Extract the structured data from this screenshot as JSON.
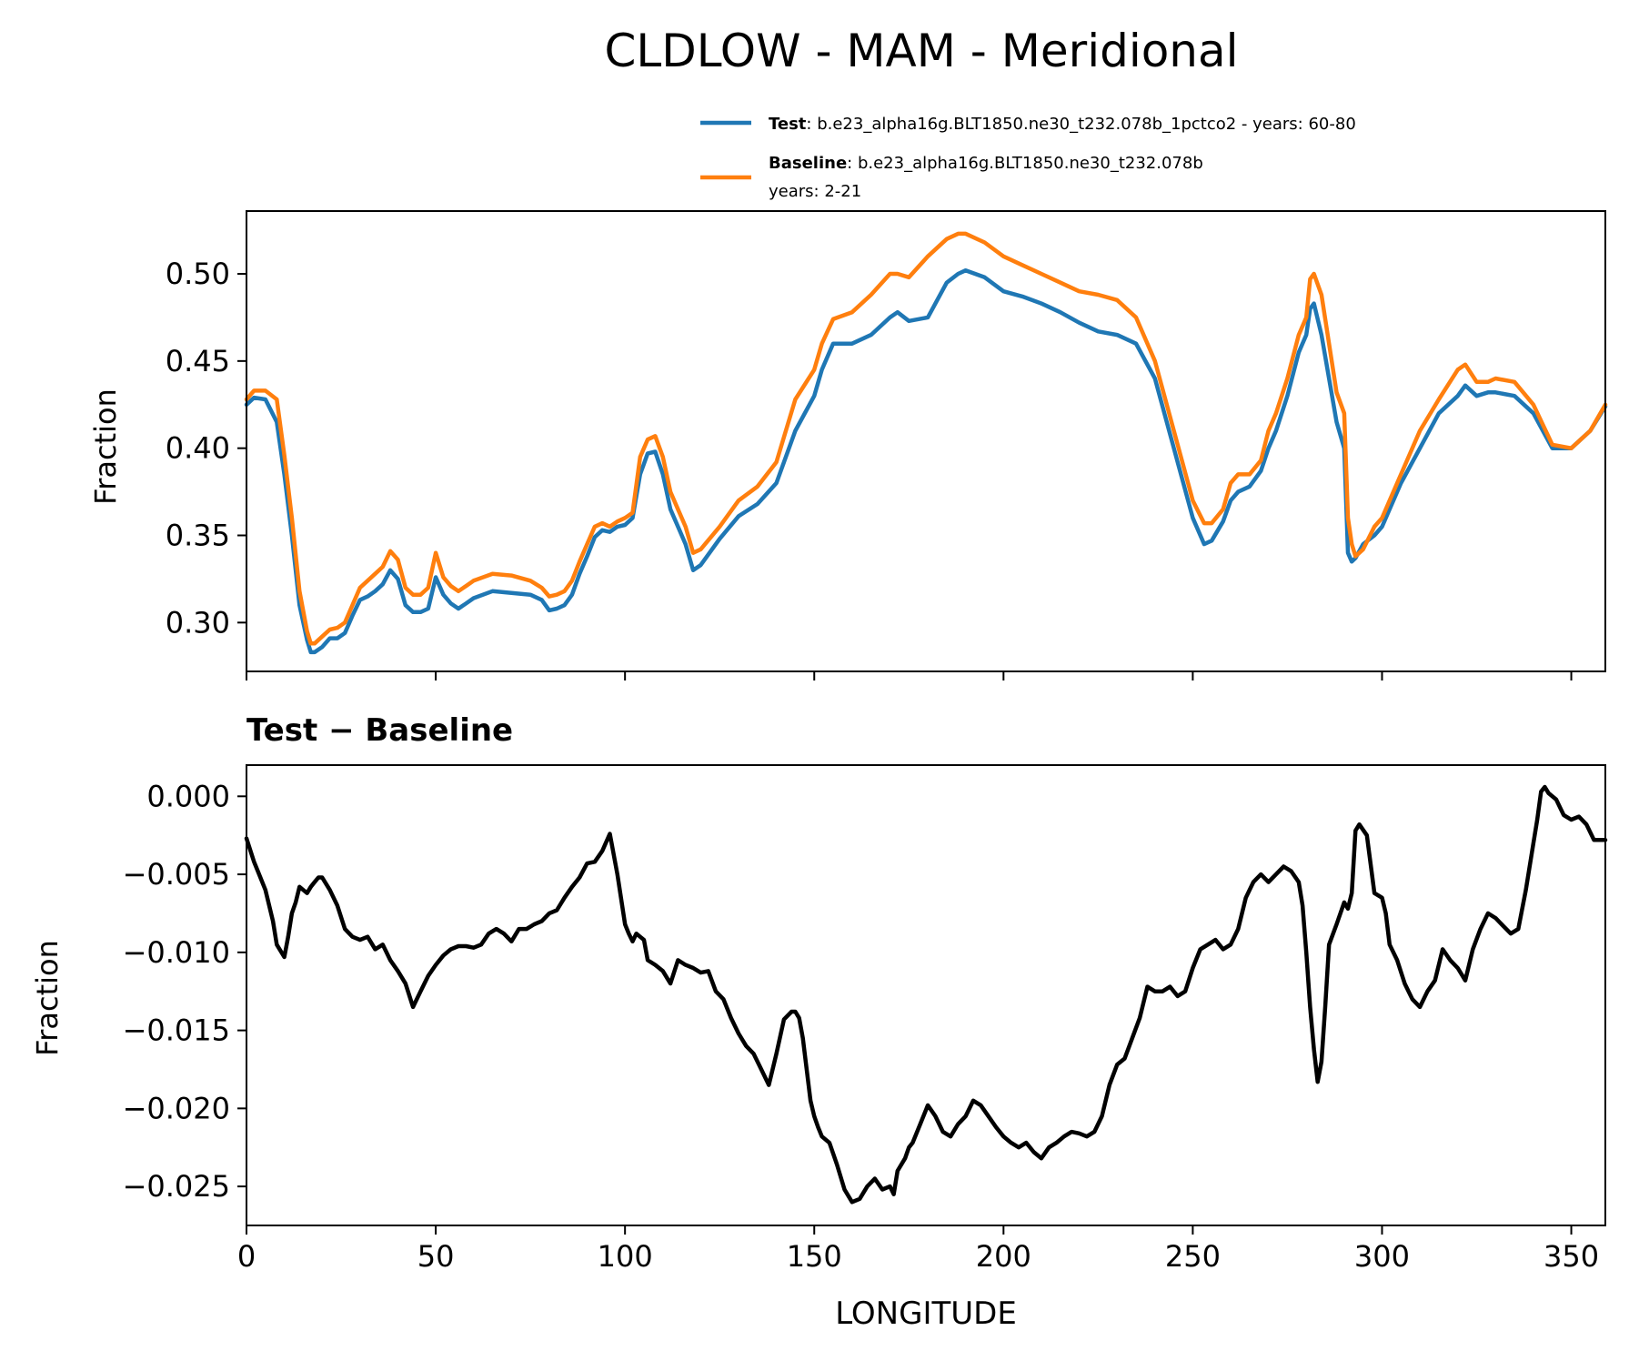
{
  "figure": {
    "title": "CLDLOW - MAM - Meridional"
  },
  "legend": {
    "test_name": "Test",
    "test_text": ": b.e23_alpha16g.BLT1850.ne30_t232.078b_1pctco2 - years: 60-80",
    "baseline_name": "Baseline",
    "baseline_text": ": b.e23_alpha16g.BLT1850.ne30_t232.078b",
    "baseline_years": "years: 2-21"
  },
  "bottom_title": "Test − Baseline",
  "colors": {
    "test": "#1f77b4",
    "baseline": "#ff7f0e",
    "diff": "#000000"
  },
  "chart_data": [
    {
      "type": "line",
      "title": "",
      "xlabel": "",
      "ylabel": "Fraction",
      "xlim": [
        0,
        359
      ],
      "ylim": [
        0.272,
        0.536
      ],
      "xticks": [
        0,
        50,
        100,
        150,
        200,
        250,
        300,
        350
      ],
      "yticks": [
        0.3,
        0.35,
        0.4,
        0.45,
        0.5
      ],
      "ytick_labels": [
        "0.30",
        "0.35",
        "0.40",
        "0.45",
        "0.50"
      ],
      "show_xtick_labels": false,
      "legend_position": "above",
      "series": [
        {
          "name": "Test",
          "x": [
            0,
            2,
            5,
            8,
            10,
            12,
            14,
            16,
            17,
            18,
            20,
            22,
            24,
            26,
            28,
            30,
            32,
            34,
            36,
            38,
            40,
            42,
            44,
            46,
            48,
            50,
            52,
            54,
            56,
            58,
            60,
            65,
            70,
            75,
            78,
            80,
            82,
            84,
            86,
            88,
            90,
            92,
            94,
            96,
            98,
            100,
            102,
            104,
            106,
            108,
            110,
            112,
            114,
            116,
            118,
            120,
            125,
            130,
            135,
            140,
            145,
            150,
            152,
            155,
            160,
            165,
            170,
            172,
            175,
            180,
            185,
            188,
            190,
            195,
            200,
            205,
            210,
            215,
            220,
            225,
            230,
            235,
            240,
            245,
            250,
            253,
            255,
            258,
            260,
            262,
            265,
            268,
            270,
            272,
            275,
            278,
            280,
            281,
            282,
            284,
            286,
            288,
            290,
            291,
            292,
            293,
            295,
            298,
            300,
            305,
            310,
            315,
            320,
            322,
            325,
            328,
            330,
            335,
            340,
            345,
            350,
            355,
            359
          ],
          "values": [
            0.425,
            0.429,
            0.428,
            0.415,
            0.385,
            0.35,
            0.31,
            0.29,
            0.283,
            0.283,
            0.286,
            0.291,
            0.291,
            0.294,
            0.304,
            0.313,
            0.315,
            0.318,
            0.322,
            0.33,
            0.325,
            0.31,
            0.306,
            0.306,
            0.308,
            0.326,
            0.316,
            0.311,
            0.308,
            0.311,
            0.314,
            0.318,
            0.317,
            0.316,
            0.313,
            0.307,
            0.308,
            0.31,
            0.316,
            0.328,
            0.338,
            0.349,
            0.353,
            0.352,
            0.355,
            0.356,
            0.36,
            0.385,
            0.397,
            0.398,
            0.385,
            0.365,
            0.355,
            0.345,
            0.33,
            0.333,
            0.348,
            0.361,
            0.368,
            0.38,
            0.41,
            0.43,
            0.445,
            0.46,
            0.46,
            0.465,
            0.475,
            0.478,
            0.473,
            0.475,
            0.495,
            0.5,
            0.502,
            0.498,
            0.49,
            0.487,
            0.483,
            0.478,
            0.472,
            0.467,
            0.465,
            0.46,
            0.44,
            0.4,
            0.36,
            0.345,
            0.347,
            0.358,
            0.37,
            0.375,
            0.378,
            0.387,
            0.4,
            0.41,
            0.43,
            0.455,
            0.465,
            0.48,
            0.483,
            0.465,
            0.44,
            0.415,
            0.4,
            0.34,
            0.335,
            0.337,
            0.345,
            0.35,
            0.355,
            0.38,
            0.4,
            0.42,
            0.43,
            0.436,
            0.43,
            0.432,
            0.432,
            0.43,
            0.42,
            0.4,
            0.4,
            0.41,
            0.424
          ]
        },
        {
          "name": "Baseline",
          "x": [
            0,
            2,
            5,
            8,
            10,
            12,
            14,
            16,
            17,
            18,
            20,
            22,
            24,
            26,
            28,
            30,
            32,
            34,
            36,
            38,
            40,
            42,
            44,
            46,
            48,
            50,
            52,
            54,
            56,
            58,
            60,
            65,
            70,
            75,
            78,
            80,
            82,
            84,
            86,
            88,
            90,
            92,
            94,
            96,
            98,
            100,
            102,
            104,
            106,
            108,
            110,
            112,
            114,
            116,
            118,
            120,
            125,
            130,
            135,
            140,
            145,
            150,
            152,
            155,
            160,
            165,
            170,
            172,
            175,
            180,
            185,
            188,
            190,
            195,
            200,
            205,
            210,
            215,
            220,
            225,
            230,
            235,
            240,
            245,
            250,
            253,
            255,
            258,
            260,
            262,
            265,
            268,
            270,
            272,
            275,
            278,
            280,
            281,
            282,
            284,
            286,
            288,
            290,
            291,
            292,
            293,
            295,
            298,
            300,
            305,
            310,
            315,
            320,
            322,
            325,
            328,
            330,
            335,
            340,
            345,
            350,
            355,
            359
          ],
          "values": [
            0.428,
            0.433,
            0.433,
            0.428,
            0.396,
            0.36,
            0.318,
            0.295,
            0.288,
            0.288,
            0.292,
            0.296,
            0.297,
            0.3,
            0.31,
            0.32,
            0.324,
            0.328,
            0.332,
            0.341,
            0.336,
            0.32,
            0.316,
            0.316,
            0.32,
            0.34,
            0.326,
            0.321,
            0.318,
            0.321,
            0.324,
            0.328,
            0.327,
            0.324,
            0.32,
            0.315,
            0.316,
            0.318,
            0.324,
            0.335,
            0.345,
            0.355,
            0.357,
            0.355,
            0.358,
            0.36,
            0.363,
            0.395,
            0.405,
            0.407,
            0.395,
            0.375,
            0.365,
            0.355,
            0.34,
            0.342,
            0.355,
            0.37,
            0.378,
            0.392,
            0.428,
            0.445,
            0.46,
            0.474,
            0.478,
            0.488,
            0.5,
            0.5,
            0.498,
            0.51,
            0.52,
            0.523,
            0.523,
            0.518,
            0.51,
            0.505,
            0.5,
            0.495,
            0.49,
            0.488,
            0.485,
            0.475,
            0.45,
            0.41,
            0.37,
            0.357,
            0.357,
            0.365,
            0.38,
            0.385,
            0.385,
            0.393,
            0.41,
            0.42,
            0.44,
            0.465,
            0.475,
            0.497,
            0.5,
            0.488,
            0.46,
            0.432,
            0.42,
            0.36,
            0.345,
            0.338,
            0.342,
            0.355,
            0.36,
            0.385,
            0.41,
            0.428,
            0.445,
            0.448,
            0.438,
            0.438,
            0.44,
            0.438,
            0.425,
            0.402,
            0.4,
            0.41,
            0.425
          ]
        }
      ]
    },
    {
      "type": "line",
      "title": "Test − Baseline",
      "xlabel": "LONGITUDE",
      "ylabel": "Fraction",
      "xlim": [
        0,
        359
      ],
      "ylim": [
        -0.0275,
        0.002
      ],
      "xticks": [
        0,
        50,
        100,
        150,
        200,
        250,
        300,
        350
      ],
      "xtick_labels": [
        "0",
        "50",
        "100",
        "150",
        "200",
        "250",
        "300",
        "350"
      ],
      "yticks": [
        0.0,
        -0.005,
        -0.01,
        -0.015,
        -0.02,
        -0.025
      ],
      "ytick_labels": [
        "0.000",
        "−0.005",
        "−0.010",
        "−0.015",
        "−0.020",
        "−0.025"
      ],
      "series": [
        {
          "name": "Test - Baseline",
          "x": [
            0,
            2,
            3,
            5,
            7,
            8,
            10,
            11,
            12,
            13,
            14,
            16,
            17,
            18,
            19,
            20,
            22,
            24,
            26,
            28,
            30,
            32,
            34,
            36,
            38,
            40,
            42,
            44,
            46,
            47,
            48,
            50,
            52,
            54,
            56,
            58,
            60,
            62,
            64,
            66,
            68,
            70,
            72,
            74,
            76,
            78,
            80,
            82,
            84,
            86,
            88,
            90,
            92,
            94,
            96,
            98,
            100,
            101,
            102,
            103,
            104,
            105,
            106,
            108,
            110,
            112,
            114,
            116,
            118,
            120,
            122,
            124,
            126,
            128,
            130,
            132,
            134,
            136,
            138,
            140,
            142,
            144,
            145,
            146,
            147,
            148,
            149,
            150,
            151,
            152,
            154,
            156,
            158,
            160,
            162,
            164,
            166,
            168,
            170,
            171,
            172,
            174,
            175,
            176,
            178,
            180,
            182,
            184,
            186,
            188,
            190,
            192,
            194,
            196,
            198,
            200,
            202,
            204,
            206,
            208,
            210,
            212,
            214,
            216,
            218,
            220,
            222,
            224,
            226,
            228,
            230,
            232,
            234,
            236,
            238,
            240,
            242,
            244,
            246,
            248,
            250,
            252,
            254,
            256,
            258,
            260,
            262,
            264,
            266,
            268,
            270,
            272,
            274,
            276,
            278,
            279,
            280,
            281,
            282,
            283,
            284,
            285,
            286,
            288,
            290,
            291,
            292,
            293,
            294,
            296,
            298,
            300,
            301,
            302,
            304,
            306,
            308,
            310,
            312,
            314,
            316,
            318,
            320,
            322,
            324,
            326,
            328,
            330,
            332,
            334,
            336,
            338,
            340,
            341,
            342,
            343,
            344,
            346,
            348,
            350,
            352,
            354,
            356,
            358,
            359
          ],
          "values": [
            -0.0027,
            -0.0042,
            -0.0048,
            -0.006,
            -0.008,
            -0.0095,
            -0.0103,
            -0.009,
            -0.0075,
            -0.0068,
            -0.0058,
            -0.0062,
            -0.0058,
            -0.0055,
            -0.0052,
            -0.0052,
            -0.006,
            -0.007,
            -0.0085,
            -0.009,
            -0.0092,
            -0.009,
            -0.0098,
            -0.0095,
            -0.0105,
            -0.0112,
            -0.012,
            -0.0135,
            -0.0125,
            -0.012,
            -0.0115,
            -0.0108,
            -0.0102,
            -0.0098,
            -0.0096,
            -0.0096,
            -0.0097,
            -0.0095,
            -0.0088,
            -0.0085,
            -0.0088,
            -0.0093,
            -0.0085,
            -0.0085,
            -0.0082,
            -0.008,
            -0.0075,
            -0.0073,
            -0.0065,
            -0.0058,
            -0.0052,
            -0.0043,
            -0.0042,
            -0.0035,
            -0.0024,
            -0.005,
            -0.0082,
            -0.0088,
            -0.0093,
            -0.0088,
            -0.009,
            -0.0092,
            -0.0105,
            -0.0108,
            -0.0112,
            -0.012,
            -0.0105,
            -0.0108,
            -0.011,
            -0.0113,
            -0.0112,
            -0.0125,
            -0.013,
            -0.0142,
            -0.0152,
            -0.016,
            -0.0165,
            -0.0175,
            -0.0185,
            -0.0165,
            -0.0143,
            -0.0138,
            -0.0138,
            -0.0142,
            -0.0155,
            -0.0175,
            -0.0195,
            -0.0205,
            -0.0212,
            -0.0218,
            -0.0222,
            -0.0236,
            -0.0252,
            -0.026,
            -0.0258,
            -0.025,
            -0.0245,
            -0.0252,
            -0.025,
            -0.0255,
            -0.024,
            -0.0232,
            -0.0225,
            -0.0222,
            -0.021,
            -0.0198,
            -0.0205,
            -0.0215,
            -0.0218,
            -0.021,
            -0.0205,
            -0.0195,
            -0.0198,
            -0.0205,
            -0.0212,
            -0.0218,
            -0.0222,
            -0.0225,
            -0.0222,
            -0.0228,
            -0.0232,
            -0.0225,
            -0.0222,
            -0.0218,
            -0.0215,
            -0.0216,
            -0.0218,
            -0.0215,
            -0.0205,
            -0.0185,
            -0.0172,
            -0.0168,
            -0.0155,
            -0.0142,
            -0.0122,
            -0.0125,
            -0.0125,
            -0.0122,
            -0.0128,
            -0.0125,
            -0.011,
            -0.0098,
            -0.0095,
            -0.0092,
            -0.0098,
            -0.0095,
            -0.0085,
            -0.0065,
            -0.0055,
            -0.005,
            -0.0055,
            -0.005,
            -0.0045,
            -0.0048,
            -0.0055,
            -0.007,
            -0.01,
            -0.0135,
            -0.0162,
            -0.0183,
            -0.017,
            -0.0135,
            -0.0095,
            -0.0082,
            -0.0068,
            -0.0072,
            -0.0062,
            -0.0022,
            -0.0018,
            -0.0025,
            -0.0062,
            -0.0065,
            -0.0075,
            -0.0095,
            -0.0105,
            -0.012,
            -0.013,
            -0.0135,
            -0.0125,
            -0.0118,
            -0.0098,
            -0.0105,
            -0.011,
            -0.0118,
            -0.0098,
            -0.0085,
            -0.0075,
            -0.0078,
            -0.0083,
            -0.0088,
            -0.0085,
            -0.006,
            -0.003,
            -0.0015,
            0.0003,
            0.0006,
            0.0002,
            -0.0002,
            -0.0012,
            -0.0015,
            -0.0013,
            -0.0018,
            -0.0028,
            -0.0028,
            -0.0028
          ]
        }
      ]
    }
  ]
}
